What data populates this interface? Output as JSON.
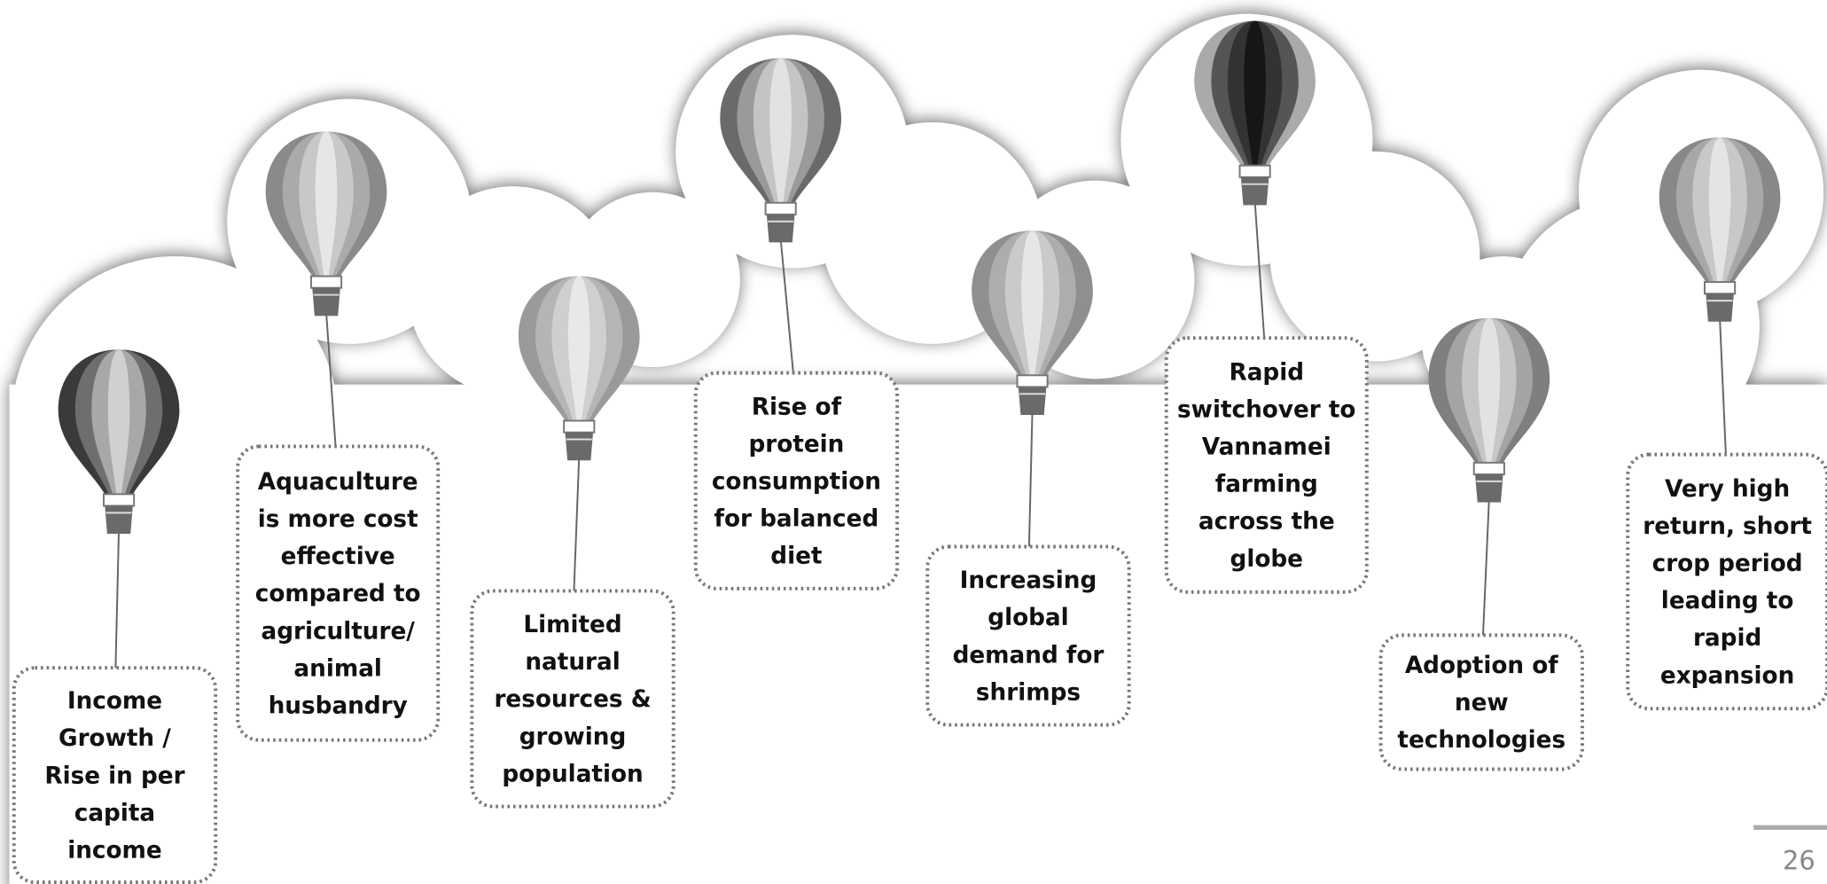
{
  "items": [
    {
      "lines": [
        "Income",
        "Growth /",
        "Rise in per",
        "capita",
        "income"
      ]
    },
    {
      "lines": [
        "Aquaculture",
        "is more cost",
        "effective",
        "compared to",
        "agriculture/",
        "animal",
        "husbandry"
      ]
    },
    {
      "lines": [
        "Limited",
        "natural",
        "resources &",
        "growing",
        "population"
      ]
    },
    {
      "lines": [
        "Rise of",
        "protein",
        "consumption",
        "for balanced",
        "diet"
      ]
    },
    {
      "lines": [
        "Increasing",
        "global",
        "demand for",
        "shrimps"
      ]
    },
    {
      "lines": [
        "Rapid",
        "switchover to",
        "Vannamei",
        "farming",
        "across the",
        "globe"
      ]
    },
    {
      "lines": [
        "Adoption of",
        "new",
        "technologies"
      ]
    },
    {
      "lines": [
        "Very high",
        "return, short",
        "crop period",
        "leading to",
        "rapid",
        "expansion"
      ]
    }
  ],
  "page_number": "26"
}
